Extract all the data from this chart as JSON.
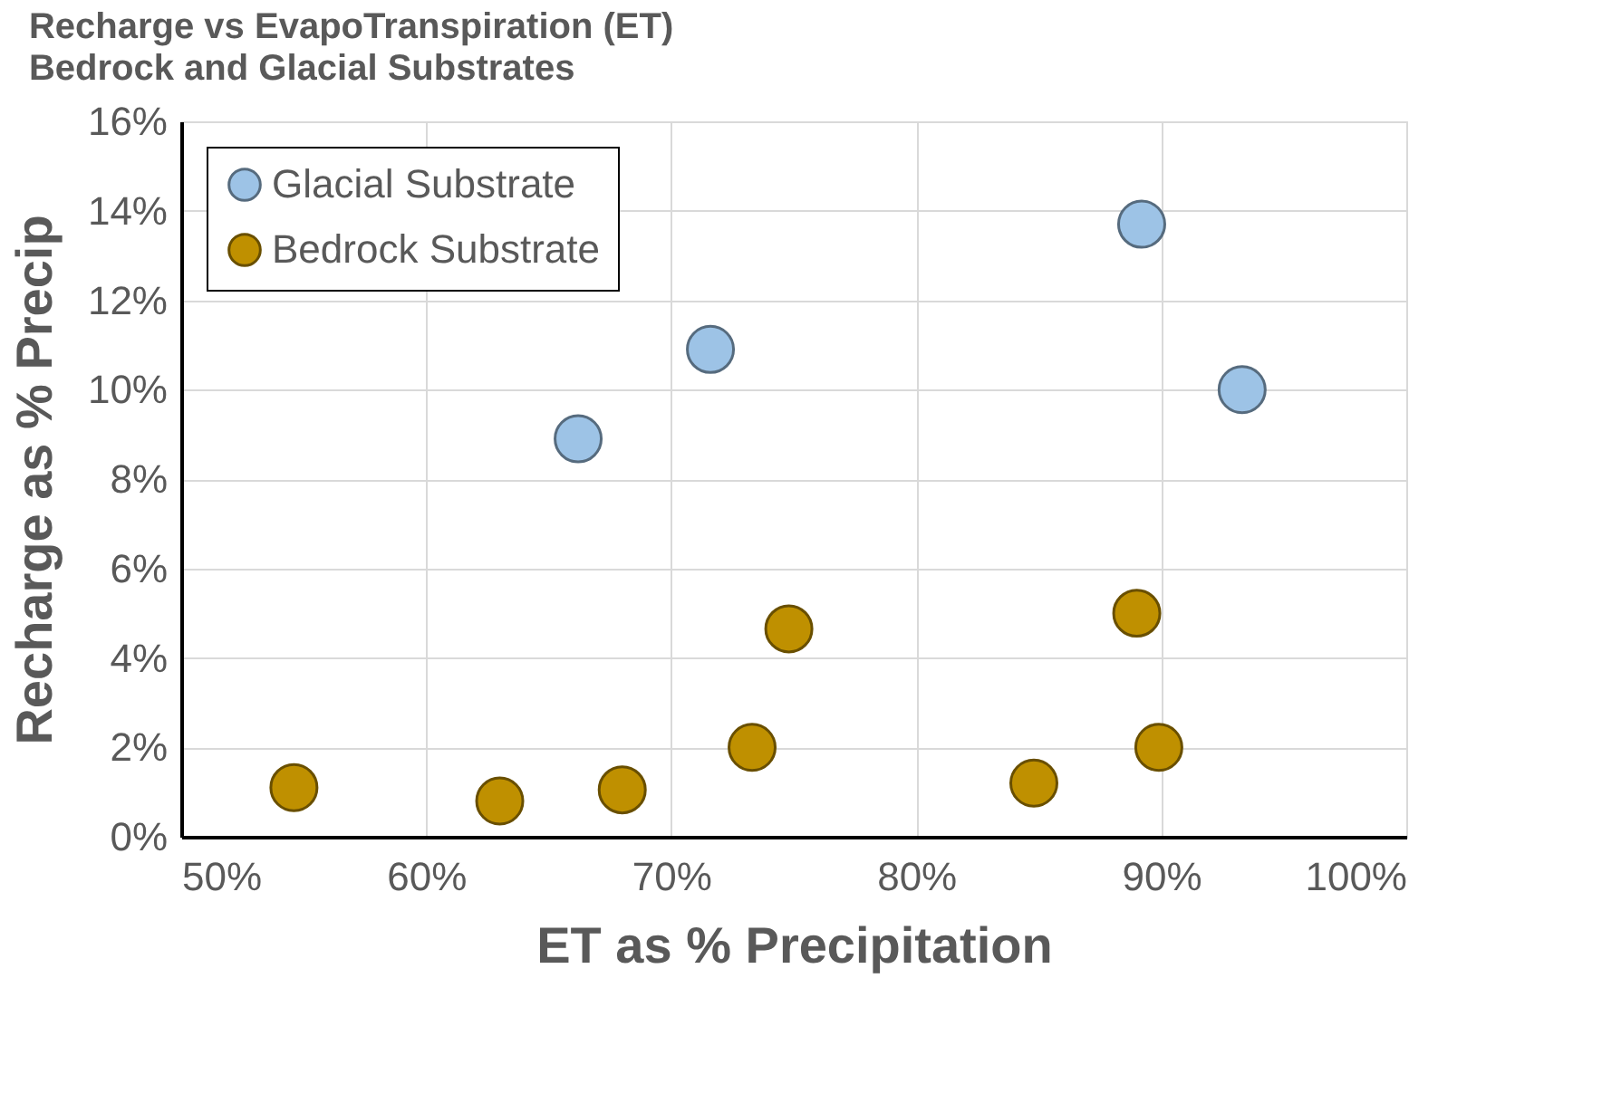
{
  "chart_data": {
    "type": "scatter",
    "title": "Recharge vs EvapoTranspiration (ET)",
    "subtitle": "Bedrock and Glacial Substrates",
    "xlabel": "ET as % Precipitation",
    "ylabel": "Recharge as % Precip",
    "series": [
      {
        "name": "Glacial Substrate",
        "color": "#9dc3e6",
        "x": [
          66.2,
          71.6,
          89.2,
          93.3
        ],
        "values": [
          8.9,
          10.9,
          13.7,
          10.0
        ]
      },
      {
        "name": "Bedrock Substrate",
        "color": "#bf9000",
        "x": [
          54.6,
          63.0,
          68.0,
          73.3,
          74.8,
          84.8,
          89.0,
          89.9
        ],
        "values": [
          1.1,
          0.8,
          1.05,
          2.0,
          4.65,
          1.2,
          5.0,
          2.0
        ]
      }
    ],
    "xlim": [
      50,
      100
    ],
    "xticks": [
      {
        "value": 50,
        "label": "50%"
      },
      {
        "value": 60,
        "label": "60%"
      },
      {
        "value": 70,
        "label": "70%"
      },
      {
        "value": 80,
        "label": "80%"
      },
      {
        "value": 90,
        "label": "90%"
      },
      {
        "value": 100,
        "label": "100%"
      }
    ],
    "ylim": [
      0,
      16
    ],
    "yticks": [
      {
        "value": 0,
        "label": "0%"
      },
      {
        "value": 2,
        "label": "2%"
      },
      {
        "value": 4,
        "label": "4%"
      },
      {
        "value": 6,
        "label": "6%"
      },
      {
        "value": 8,
        "label": "8%"
      },
      {
        "value": 10,
        "label": "10%"
      },
      {
        "value": 12,
        "label": "12%"
      },
      {
        "value": 14,
        "label": "14%"
      },
      {
        "value": 16,
        "label": "16%"
      }
    ],
    "grid": true,
    "legend": "top left",
    "marker": "circle"
  }
}
